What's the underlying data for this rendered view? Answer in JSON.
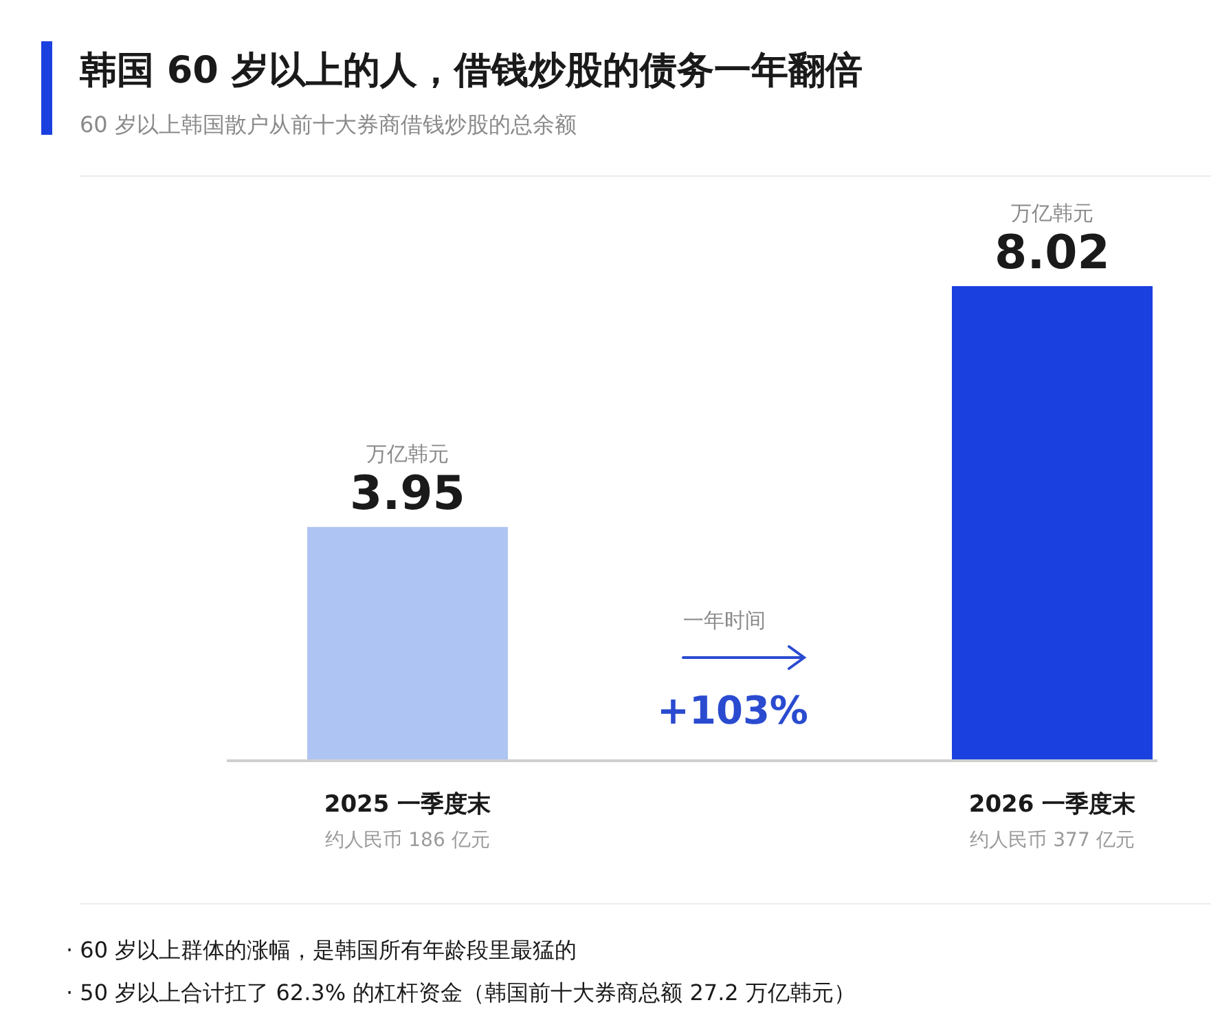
{
  "chart_data": {
    "type": "bar",
    "title": "韩国 60 岁以上的人，借钱炒股的债务一年翻倍",
    "subtitle": "60 岁以上韩国散户从前十大券商借钱炒股的总余额",
    "categories": [
      "2025 一季度末",
      "2026 一季度末"
    ],
    "values": [
      3.95,
      8.02
    ],
    "colors": [
      "#aec4f2",
      "#1b40e0"
    ],
    "data_labels": true,
    "annotations": [
      {
        "text": "万亿韩元",
        "x": "2025 一季度末",
        "y": 3.95
      },
      {
        "text": "万亿韩元",
        "x": "2026 一季度末",
        "y": 8.02
      },
      "约人民币 186 亿元",
      "约人民币 377 亿元",
      "一年时间",
      "+103%",
      "· 60 岁以上群体的涨幅，是韩国所有年龄段里最猛的",
      "· 50 岁以上合计扛了 62.3% 的杠杆资金（韩国前十大券商总额 27.2 万亿韩元）"
    ]
  }
}
